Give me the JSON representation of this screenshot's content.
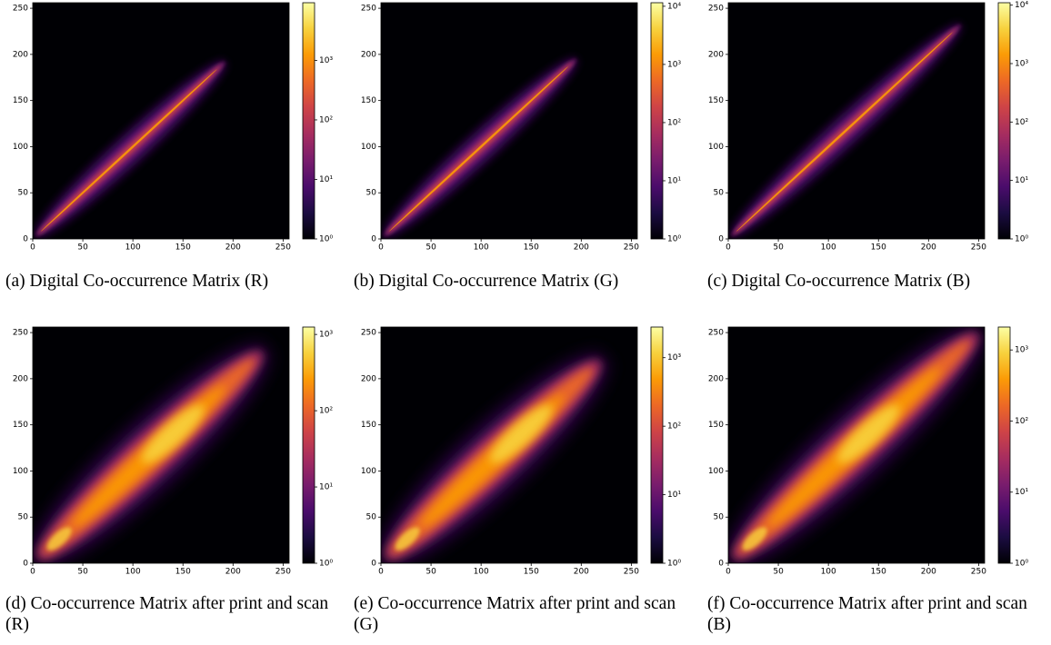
{
  "chart_data": [
    {
      "type": "heatmap",
      "caption": "(a)  Digital Co-occurrence Matrix (R)",
      "xlim": [
        0,
        256
      ],
      "ylim": [
        0,
        256
      ],
      "xticks": [
        0,
        50,
        100,
        150,
        200,
        250
      ],
      "yticks": [
        0,
        50,
        100,
        150,
        200,
        250
      ],
      "colorbar": {
        "scale": "log",
        "cmap": "inferno",
        "lim": [
          1,
          9300
        ],
        "ticks": [
          {
            "value": 1,
            "label": "10⁰"
          },
          {
            "value": 10,
            "label": "10¹"
          },
          {
            "value": 100,
            "label": "10²"
          },
          {
            "value": 1000,
            "label": "10³"
          }
        ]
      }
    },
    {
      "type": "heatmap",
      "caption": "(b)  Digital Co-occurrence Matrix (G)",
      "xlim": [
        0,
        256
      ],
      "ylim": [
        0,
        256
      ],
      "xticks": [
        0,
        50,
        100,
        150,
        200,
        250
      ],
      "yticks": [
        0,
        50,
        100,
        150,
        200,
        250
      ],
      "colorbar": {
        "scale": "log",
        "cmap": "inferno",
        "lim": [
          1,
          11500
        ],
        "ticks": [
          {
            "value": 1,
            "label": "10⁰"
          },
          {
            "value": 10,
            "label": "10¹"
          },
          {
            "value": 100,
            "label": "10²"
          },
          {
            "value": 1000,
            "label": "10³"
          },
          {
            "value": 10000,
            "label": "10⁴"
          }
        ]
      }
    },
    {
      "type": "heatmap",
      "caption": "(c)  Digital Co-occurrence Matrix (B)",
      "xlim": [
        0,
        256
      ],
      "ylim": [
        0,
        256
      ],
      "xticks": [
        0,
        50,
        100,
        150,
        200,
        250
      ],
      "yticks": [
        0,
        50,
        100,
        150,
        200,
        250
      ],
      "colorbar": {
        "scale": "log",
        "cmap": "inferno",
        "lim": [
          1,
          11000
        ],
        "ticks": [
          {
            "value": 1,
            "label": "10⁰"
          },
          {
            "value": 10,
            "label": "10¹"
          },
          {
            "value": 100,
            "label": "10²"
          },
          {
            "value": 1000,
            "label": "10³"
          },
          {
            "value": 10000,
            "label": "10⁴"
          }
        ]
      }
    },
    {
      "type": "heatmap",
      "caption": "(d) Co-occurrence Matrix after print and scan (R)",
      "xlim": [
        0,
        256
      ],
      "ylim": [
        0,
        256
      ],
      "xticks": [
        0,
        50,
        100,
        150,
        200,
        250
      ],
      "yticks": [
        0,
        50,
        100,
        150,
        200,
        250
      ],
      "colorbar": {
        "scale": "log",
        "cmap": "inferno",
        "lim": [
          1,
          1250
        ],
        "ticks": [
          {
            "value": 1,
            "label": "10⁰"
          },
          {
            "value": 10,
            "label": "10¹"
          },
          {
            "value": 100,
            "label": "10²"
          },
          {
            "value": 1000,
            "label": "10³"
          }
        ]
      }
    },
    {
      "type": "heatmap",
      "caption": "(e) Co-occurrence Matrix after print and scan (G)",
      "xlim": [
        0,
        256
      ],
      "ylim": [
        0,
        256
      ],
      "xticks": [
        0,
        50,
        100,
        150,
        200,
        250
      ],
      "yticks": [
        0,
        50,
        100,
        150,
        200,
        250
      ],
      "colorbar": {
        "scale": "log",
        "cmap": "inferno",
        "lim": [
          1,
          2800
        ],
        "ticks": [
          {
            "value": 1,
            "label": "10⁰"
          },
          {
            "value": 10,
            "label": "10¹"
          },
          {
            "value": 100,
            "label": "10²"
          },
          {
            "value": 1000,
            "label": "10³"
          }
        ]
      }
    },
    {
      "type": "heatmap",
      "caption": "(f) Co-occurrence Matrix after print and scan (B)",
      "xlim": [
        0,
        256
      ],
      "ylim": [
        0,
        256
      ],
      "xticks": [
        0,
        50,
        100,
        150,
        200,
        250
      ],
      "yticks": [
        0,
        50,
        100,
        150,
        200,
        250
      ],
      "colorbar": {
        "scale": "log",
        "cmap": "inferno",
        "lim": [
          1,
          2100
        ],
        "ticks": [
          {
            "value": 1,
            "label": "10⁰"
          },
          {
            "value": 10,
            "label": "10¹"
          },
          {
            "value": 100,
            "label": "10²"
          },
          {
            "value": 1000,
            "label": "10³"
          }
        ]
      }
    }
  ]
}
